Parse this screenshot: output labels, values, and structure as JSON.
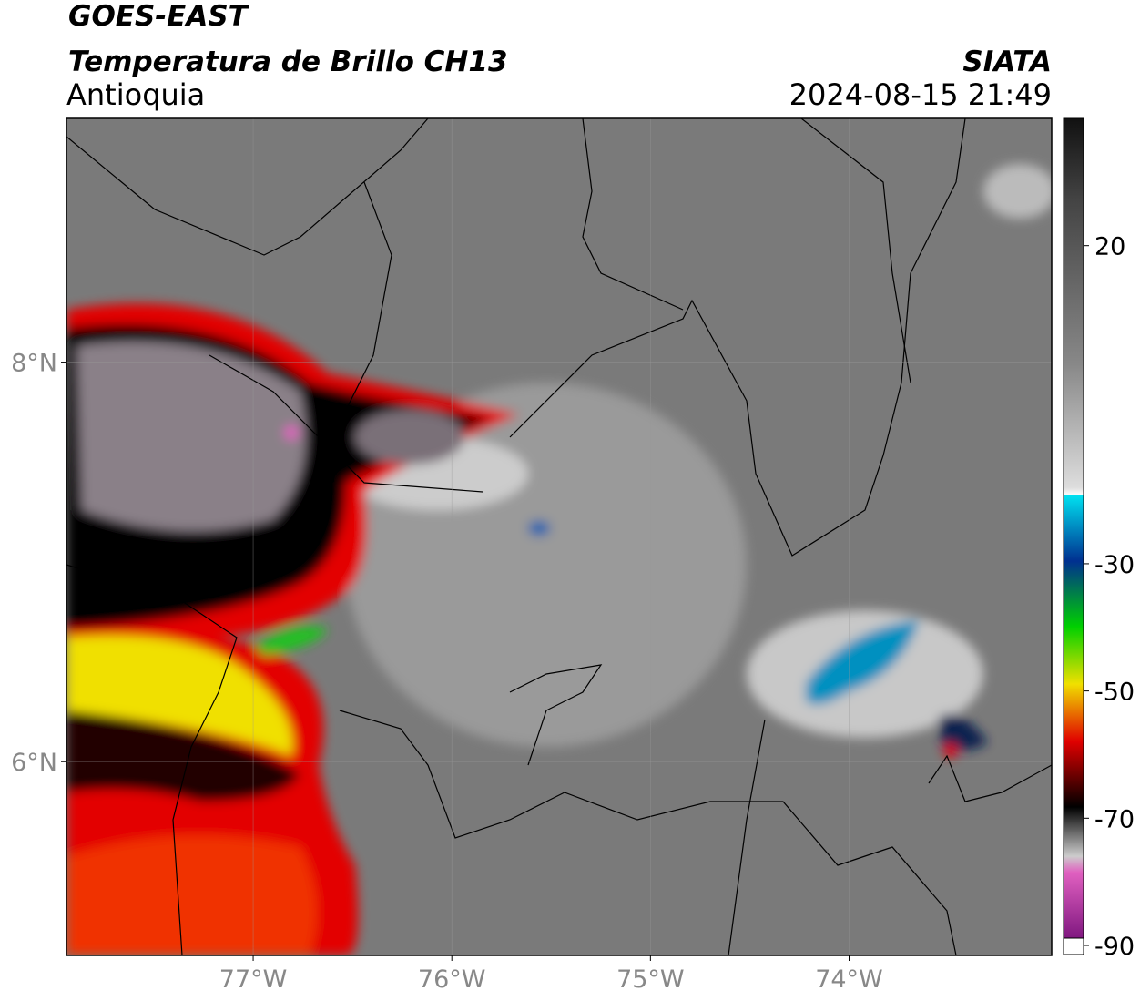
{
  "header": {
    "title": "GOES-EAST",
    "subtitle": "Temperatura de Brillo CH13",
    "region": "Antioquia",
    "source": "SIATA",
    "datetime": "2024-08-15 21:49"
  },
  "map": {
    "xlim": [
      -77.94,
      -72.98
    ],
    "ylim": [
      5.03,
      9.22
    ],
    "xticks": [
      {
        "value": -77,
        "label": "77°W"
      },
      {
        "value": -76,
        "label": "76°W"
      },
      {
        "value": -75,
        "label": "75°W"
      },
      {
        "value": -74,
        "label": "74°W"
      }
    ],
    "yticks": [
      {
        "value": 6,
        "label": "6°N"
      },
      {
        "value": 8,
        "label": "8°N"
      }
    ],
    "grid": true
  },
  "colorbar": {
    "lim": [
      -90,
      40
    ],
    "ticks": [
      20,
      -30,
      -50,
      -70,
      -90
    ]
  }
}
